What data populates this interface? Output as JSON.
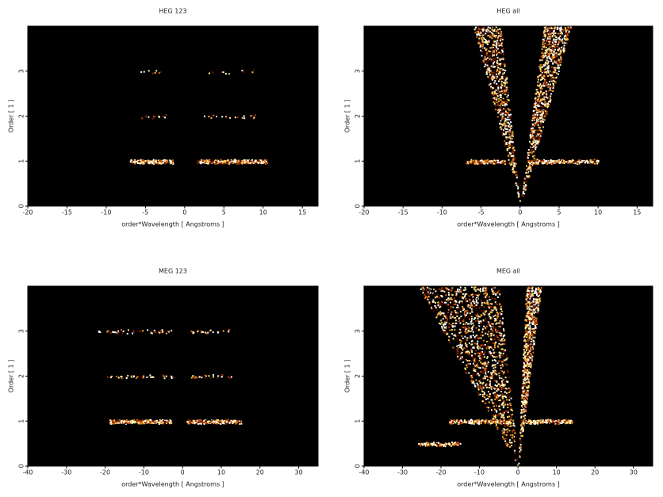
{
  "chart_data": [
    {
      "type": "image",
      "title": "HEG 123",
      "xlabel": "order*Wavelength [ Angstroms ]",
      "ylabel": "Order [ 1 ]",
      "xlim": [
        -20,
        17
      ],
      "ylim": [
        0,
        4
      ],
      "xticks": [
        -20,
        -15,
        -10,
        -5,
        0,
        5,
        10,
        15
      ],
      "yticks": [
        0,
        1,
        2,
        3
      ],
      "features": [
        {
          "shape": "streak",
          "x": [
            -7,
            -1.5
          ],
          "y": 1,
          "counts": 220
        },
        {
          "shape": "streak",
          "x": [
            1.5,
            10.5
          ],
          "y": 1,
          "counts": 320
        },
        {
          "shape": "streak",
          "x": [
            -6,
            -2
          ],
          "y": 2,
          "counts": 12
        },
        {
          "shape": "streak",
          "x": [
            2,
            9
          ],
          "y": 2,
          "counts": 18
        },
        {
          "shape": "streak",
          "x": [
            -6,
            -3
          ],
          "y": 3,
          "counts": 8
        },
        {
          "shape": "streak",
          "x": [
            3,
            9
          ],
          "y": 3,
          "counts": 12
        }
      ]
    },
    {
      "type": "image",
      "title": "HEG all",
      "xlabel": "order*Wavelength [ Angstroms ]",
      "ylabel": "Order [ 1 ]",
      "xlim": [
        -20,
        17
      ],
      "ylim": [
        0,
        4
      ],
      "xticks": [
        -20,
        -15,
        -10,
        -5,
        0,
        5,
        10,
        15
      ],
      "yticks": [
        0,
        1,
        2,
        3
      ],
      "features": [
        {
          "shape": "wedge",
          "x": [
            -6,
            -2.5
          ],
          "y": 4,
          "counts": 700
        },
        {
          "shape": "wedge",
          "x": [
            3,
            6.5
          ],
          "y": 4,
          "counts": 900
        },
        {
          "shape": "streak",
          "x": [
            -7,
            -2
          ],
          "y": 1,
          "counts": 150
        },
        {
          "shape": "streak",
          "x": [
            1,
            10
          ],
          "y": 1,
          "counts": 250
        }
      ]
    },
    {
      "type": "image",
      "title": "MEG 123",
      "xlabel": "order*Wavelength [ Angstroms ]",
      "ylabel": "Order [ 1 ]",
      "xlim": [
        -40,
        35
      ],
      "ylim": [
        0,
        4
      ],
      "xticks": [
        -40,
        -30,
        -20,
        -10,
        0,
        10,
        20,
        30
      ],
      "yticks": [
        0,
        1,
        2,
        3
      ],
      "features": [
        {
          "shape": "streak",
          "x": [
            -19,
            -3
          ],
          "y": 1,
          "counts": 300
        },
        {
          "shape": "streak",
          "x": [
            1,
            15
          ],
          "y": 1,
          "counts": 260
        },
        {
          "shape": "streak",
          "x": [
            -21,
            -2
          ],
          "y": 2,
          "counts": 40
        },
        {
          "shape": "streak",
          "x": [
            2,
            13
          ],
          "y": 2,
          "counts": 25
        },
        {
          "shape": "streak",
          "x": [
            -22,
            -3
          ],
          "y": 3,
          "counts": 45
        },
        {
          "shape": "streak",
          "x": [
            2,
            12
          ],
          "y": 3,
          "counts": 25
        }
      ]
    },
    {
      "type": "image",
      "title": "MEG all",
      "xlabel": "order*Wavelength [ Angstroms ]",
      "ylabel": "Order [ 1 ]",
      "xlim": [
        -40,
        35
      ],
      "ylim": [
        0,
        4
      ],
      "xticks": [
        -40,
        -30,
        -20,
        -10,
        0,
        10,
        20,
        30
      ],
      "yticks": [
        0,
        1,
        2,
        3
      ],
      "features": [
        {
          "shape": "wedge",
          "x": [
            -26,
            -5
          ],
          "y": 4,
          "counts": 1300
        },
        {
          "shape": "wedge",
          "x": [
            2,
            6
          ],
          "y": 4,
          "counts": 700
        },
        {
          "shape": "streak",
          "x": [
            -18,
            -2
          ],
          "y": 1,
          "counts": 250
        },
        {
          "shape": "streak",
          "x": [
            1,
            14
          ],
          "y": 1,
          "counts": 220
        },
        {
          "shape": "streak",
          "x": [
            -26,
            -15
          ],
          "y": 0.5,
          "counts": 120
        }
      ]
    }
  ]
}
